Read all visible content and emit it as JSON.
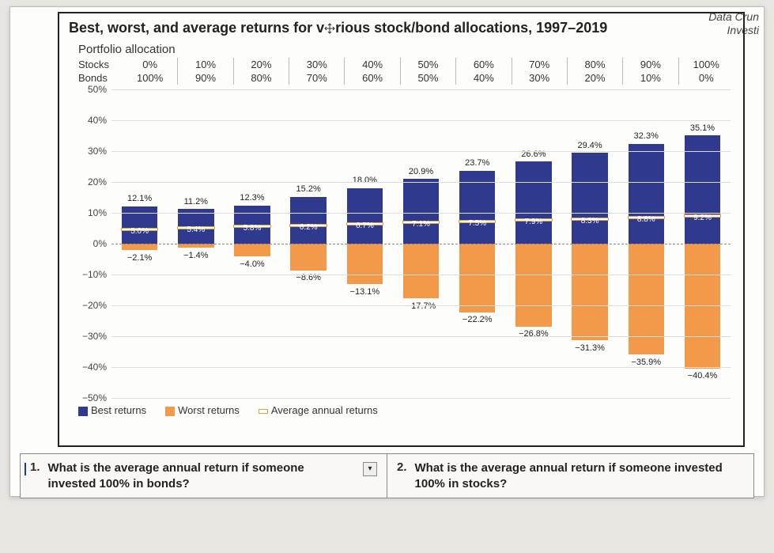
{
  "page_corner": {
    "line1": "Data Crun",
    "line2": "Investi"
  },
  "chart": {
    "type": "bar",
    "title_pre": "Best, worst, and average returns for v",
    "title_post": "rious stock/bond allocations, 1997–2019",
    "subtitle": "Portfolio allocation",
    "row1_label": "Stocks",
    "row2_label": "Bonds",
    "stocks": [
      "0%",
      "10%",
      "20%",
      "30%",
      "40%",
      "50%",
      "60%",
      "70%",
      "80%",
      "90%",
      "100%"
    ],
    "bonds": [
      "100%",
      "90%",
      "80%",
      "70%",
      "60%",
      "50%",
      "40%",
      "30%",
      "20%",
      "10%",
      "0%"
    ],
    "y_min": -50,
    "y_max": 50,
    "y_step": 10,
    "yticks": [
      "50%",
      "40%",
      "30%",
      "20%",
      "10%",
      "0%",
      "−10%",
      "−20%",
      "−30%",
      "−40%",
      "−50%"
    ],
    "series": {
      "best": [
        12.1,
        11.2,
        12.3,
        15.2,
        18.0,
        20.9,
        23.7,
        26.6,
        29.4,
        32.3,
        35.1
      ],
      "worst": [
        -2.1,
        -1.4,
        -4.0,
        -8.6,
        -13.1,
        -17.7,
        -22.2,
        -26.8,
        -31.3,
        -35.9,
        -40.4
      ],
      "avg": [
        5.0,
        5.4,
        5.8,
        6.2,
        6.7,
        7.1,
        7.5,
        7.9,
        8.3,
        8.8,
        9.2
      ]
    },
    "colors": {
      "best": "#2f3a8f",
      "worst": "#f2994a",
      "avg_border": "#e6a23c",
      "avg_fill": "#ffffff",
      "grid": "#dddddd",
      "zero": "#888888",
      "background": "#fdfdfb",
      "text": "#222222"
    },
    "legend": {
      "best": "Best returns",
      "worst": "Worst returns",
      "avg": "Average annual returns"
    },
    "label_fontsize": 11,
    "title_fontsize": 18
  },
  "questions": {
    "q1_num": "1.",
    "q1_text": "What is the average annual return if someone invested 100% in bonds?",
    "q2_num": "2.",
    "q2_text": "What is the average annual return if someone invested 100% in stocks?"
  }
}
